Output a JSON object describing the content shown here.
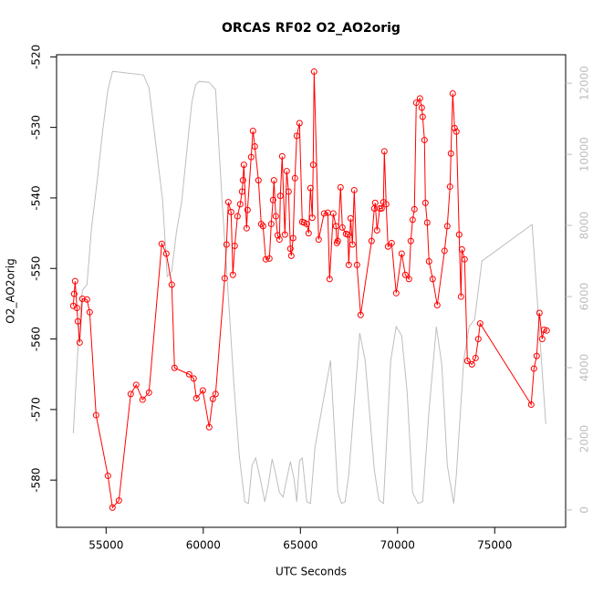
{
  "chart_data": {
    "type": "line",
    "title": "ORCAS RF02 O2_AO2orig",
    "x_label": "UTC Seconds",
    "y_label": "O2_AO2orig",
    "xlim": [
      52450,
      78650
    ],
    "xticks": [
      55000,
      60000,
      65000,
      70000,
      75000
    ],
    "ylim": [
      -586.7,
      -519.7
    ],
    "yticks": [
      -580,
      -570,
      -560,
      -550,
      -540,
      -530,
      -520
    ],
    "y2lim": [
      -490,
      12800
    ],
    "y2ticks": [
      0,
      2000,
      4000,
      6000,
      8000,
      10000,
      12000
    ],
    "grid": false,
    "series": [
      {
        "color": "#ff0000",
        "marker": "circle",
        "x": [
          53310,
          53357,
          53404,
          53498,
          53545,
          53638,
          53779,
          54014,
          54155,
          54484,
          55094,
          55329,
          55657,
          56268,
          56549,
          56878,
          57207,
          57864,
          58099,
          58380,
          58521,
          59272,
          59507,
          59648,
          59977,
          60305,
          60493,
          60634,
          61104,
          61198,
          61291,
          61432,
          61526,
          61620,
          61761,
          61902,
          61996,
          62043,
          62090,
          62231,
          62278,
          62465,
          62559,
          62653,
          62841,
          62982,
          63076,
          63216,
          63404,
          63498,
          63592,
          63639,
          63733,
          63827,
          63921,
          63967,
          64061,
          64202,
          64296,
          64390,
          64484,
          64531,
          64625,
          64719,
          64813,
          64953,
          65094,
          65188,
          65329,
          65423,
          65517,
          65611,
          65658,
          65705,
          65939,
          66221,
          66409,
          66503,
          66691,
          66831,
          66878,
          66925,
          67066,
          67160,
          67348,
          67442,
          67489,
          67583,
          67677,
          67770,
          67911,
          68099,
          68663,
          68803,
          68850,
          68944,
          69085,
          69179,
          69273,
          69320,
          69414,
          69508,
          69696,
          69930,
          70212,
          70400,
          70587,
          70681,
          70775,
          70869,
          70963,
          71151,
          71245,
          71292,
          71386,
          71433,
          71526,
          71620,
          71808,
          72043,
          72418,
          72559,
          72700,
          72747,
          72841,
          72935,
          73029,
          73170,
          73264,
          73311,
          73452,
          73592,
          73827,
          74015,
          74156,
          74250,
          76879,
          77020,
          77160,
          77301,
          77442,
          77536,
          77677
        ],
        "values": [
          -555.3,
          -553.6,
          -551.8,
          -555.6,
          -557.5,
          -560.5,
          -554.3,
          -554.4,
          -556.2,
          -570.8,
          -579.4,
          -583.9,
          -582.9,
          -567.8,
          -566.5,
          -568.6,
          -567.6,
          -546.5,
          -547.9,
          -552.3,
          -564.1,
          -565.0,
          -565.6,
          -568.4,
          -567.3,
          -572.5,
          -568.5,
          -567.8,
          -551.4,
          -546.6,
          -540.6,
          -542.0,
          -550.9,
          -546.8,
          -542.6,
          -540.9,
          -539.1,
          -537.5,
          -535.3,
          -544.3,
          -541.7,
          -534.2,
          -530.5,
          -532.7,
          -537.5,
          -543.7,
          -544.0,
          -548.7,
          -548.6,
          -543.7,
          -540.3,
          -537.5,
          -542.6,
          -545.3,
          -545.9,
          -539.7,
          -534.1,
          -545.2,
          -536.2,
          -539.1,
          -547.2,
          -548.2,
          -545.7,
          -537.2,
          -531.2,
          -529.4,
          -543.4,
          -543.5,
          -543.7,
          -545.0,
          -538.6,
          -542.8,
          -535.3,
          -522.1,
          -545.9,
          -542.2,
          -542.1,
          -551.5,
          -542.2,
          -544.0,
          -546.4,
          -546.1,
          -538.5,
          -544.2,
          -545.1,
          -545.2,
          -549.5,
          -542.9,
          -546.6,
          -538.9,
          -549.5,
          -556.6,
          -546.1,
          -541.5,
          -540.7,
          -544.6,
          -541.5,
          -541.5,
          -540.6,
          -533.4,
          -540.9,
          -546.9,
          -546.4,
          -553.5,
          -547.9,
          -550.9,
          -551.5,
          -546.1,
          -543.1,
          -541.6,
          -526.5,
          -525.9,
          -527.2,
          -528.5,
          -531.8,
          -540.7,
          -543.5,
          -549.0,
          -551.5,
          -555.2,
          -547.5,
          -544.0,
          -538.4,
          -533.7,
          -525.2,
          -530.1,
          -530.6,
          -545.2,
          -554.0,
          -547.3,
          -548.7,
          -563.1,
          -563.6,
          -562.7,
          -560.0,
          -557.8,
          -569.3,
          -564.2,
          -562.4,
          -556.3,
          -560.0,
          -558.7,
          -558.8
        ]
      },
      {
        "color": "#bebebe",
        "axis": "y2",
        "x": [
          53310,
          53592,
          53779,
          54014,
          54249,
          54531,
          54812,
          55094,
          55329,
          56925,
          57207,
          57911,
          58146,
          58380,
          58615,
          58897,
          59179,
          59413,
          59601,
          59789,
          60305,
          60634,
          60963,
          61291,
          61573,
          61855,
          62137,
          62324,
          62512,
          62700,
          62982,
          63169,
          63357,
          63545,
          63733,
          63921,
          64108,
          64296,
          64484,
          64672,
          64813,
          64953,
          65094,
          65329,
          65517,
          65752,
          66550,
          66925,
          67113,
          67301,
          67489,
          68052,
          68334,
          68803,
          69038,
          69273,
          69649,
          69930,
          70212,
          70494,
          70775,
          71057,
          71292,
          71620,
          71996,
          72278,
          72559,
          72888,
          73029,
          73404,
          73686,
          73968,
          74343,
          76925,
          77630
        ],
        "values": [
          2154,
          4974,
          6179,
          6333,
          7923,
          9205,
          10615,
          11820,
          12333,
          12231,
          11872,
          8692,
          6564,
          6718,
          7795,
          8692,
          10231,
          11461,
          11948,
          12051,
          12025,
          11820,
          8743,
          6000,
          3564,
          1513,
          231,
          179,
          1256,
          1461,
          744,
          231,
          744,
          1436,
          1000,
          487,
          359,
          872,
          1359,
          872,
          231,
          1385,
          1461,
          231,
          179,
          1769,
          4205,
          487,
          179,
          231,
          1000,
          4974,
          4205,
          1128,
          282,
          179,
          4205,
          5154,
          4897,
          3308,
          487,
          179,
          231,
          2795,
          5154,
          4077,
          1256,
          179,
          1000,
          4205,
          5154,
          5359,
          7000,
          8026,
          2410
        ]
      }
    ]
  }
}
